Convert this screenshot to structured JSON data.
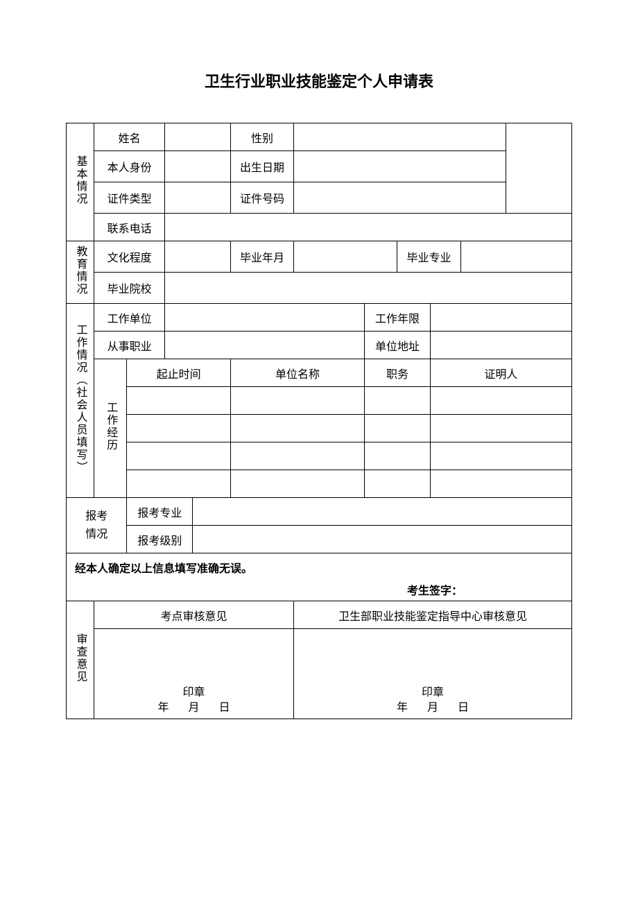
{
  "title": "卫生行业职业技能鉴定个人申请表",
  "sections": {
    "basic": "基本情况",
    "education": "教育情况",
    "work": "工作情况（社会人员填写）",
    "exam": "报考情况",
    "review": "审查意见"
  },
  "labels": {
    "name": "姓名",
    "gender": "性别",
    "identity": "本人身份",
    "birth": "出生日期",
    "idtype": "证件类型",
    "idno": "证件号码",
    "phone": "联系电话",
    "edulevel": "文化程度",
    "gradym": "毕业年月",
    "gradmajor": "毕业专业",
    "gradschool": "毕业院校",
    "workunit": "工作单位",
    "workyears": "工作年限",
    "occupation": "从事职业",
    "unitaddr": "单位地址",
    "workhist": "工作经历",
    "period": "起止时间",
    "unitname": "单位名称",
    "position": "职务",
    "witness": "证明人",
    "exammajor": "报考专业",
    "examlevel": "报考级别"
  },
  "confirm_text": "经本人确定以上信息填写准确无误。",
  "signature_label": "考生签字：",
  "review": {
    "site_title": "考点审核意见",
    "center_title": "卫生部职业技能鉴定指导中心审核意见",
    "stamp": "印章",
    "year": "年",
    "month": "月",
    "day": "日"
  },
  "values": {
    "name": "",
    "gender": "",
    "identity": "",
    "birth": "",
    "idtype": "",
    "idno": "",
    "phone": "",
    "edulevel": "",
    "gradym": "",
    "gradmajor": "",
    "gradschool": "",
    "workunit": "",
    "workyears": "",
    "occupation": "",
    "unitaddr": "",
    "exammajor": "",
    "examlevel": ""
  },
  "history_rows": [
    {
      "period": "",
      "unit": "",
      "position": "",
      "witness": ""
    },
    {
      "period": "",
      "unit": "",
      "position": "",
      "witness": ""
    },
    {
      "period": "",
      "unit": "",
      "position": "",
      "witness": ""
    },
    {
      "period": "",
      "unit": "",
      "position": "",
      "witness": ""
    }
  ],
  "style": {
    "border_color": "#000000",
    "background": "#ffffff",
    "title_fontsize": 22,
    "cell_fontsize": 16
  }
}
